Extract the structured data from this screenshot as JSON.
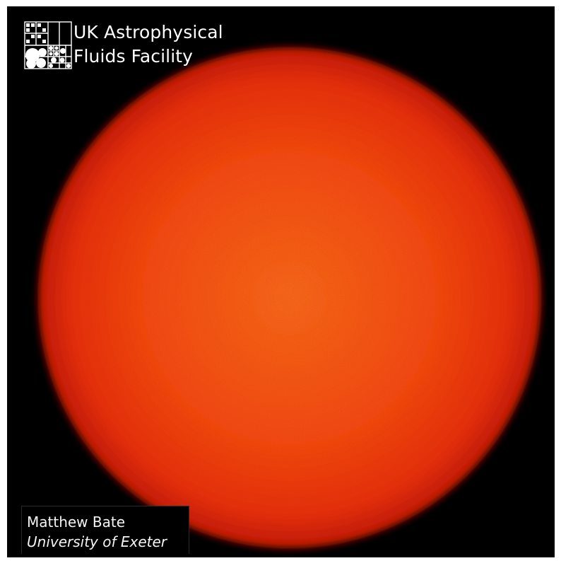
{
  "logo": {
    "line1": "UK Astrophysical",
    "line2": "Fluids Facility",
    "mark_icon": "grid-circles-logo-icon"
  },
  "credit": {
    "name": "Matthew Bate",
    "institution": "University of Exeter"
  },
  "colors": {
    "background": "#000000",
    "sphere_core": "#ff5a14",
    "sphere_edge": "#d81a08",
    "text": "#ffffff"
  }
}
